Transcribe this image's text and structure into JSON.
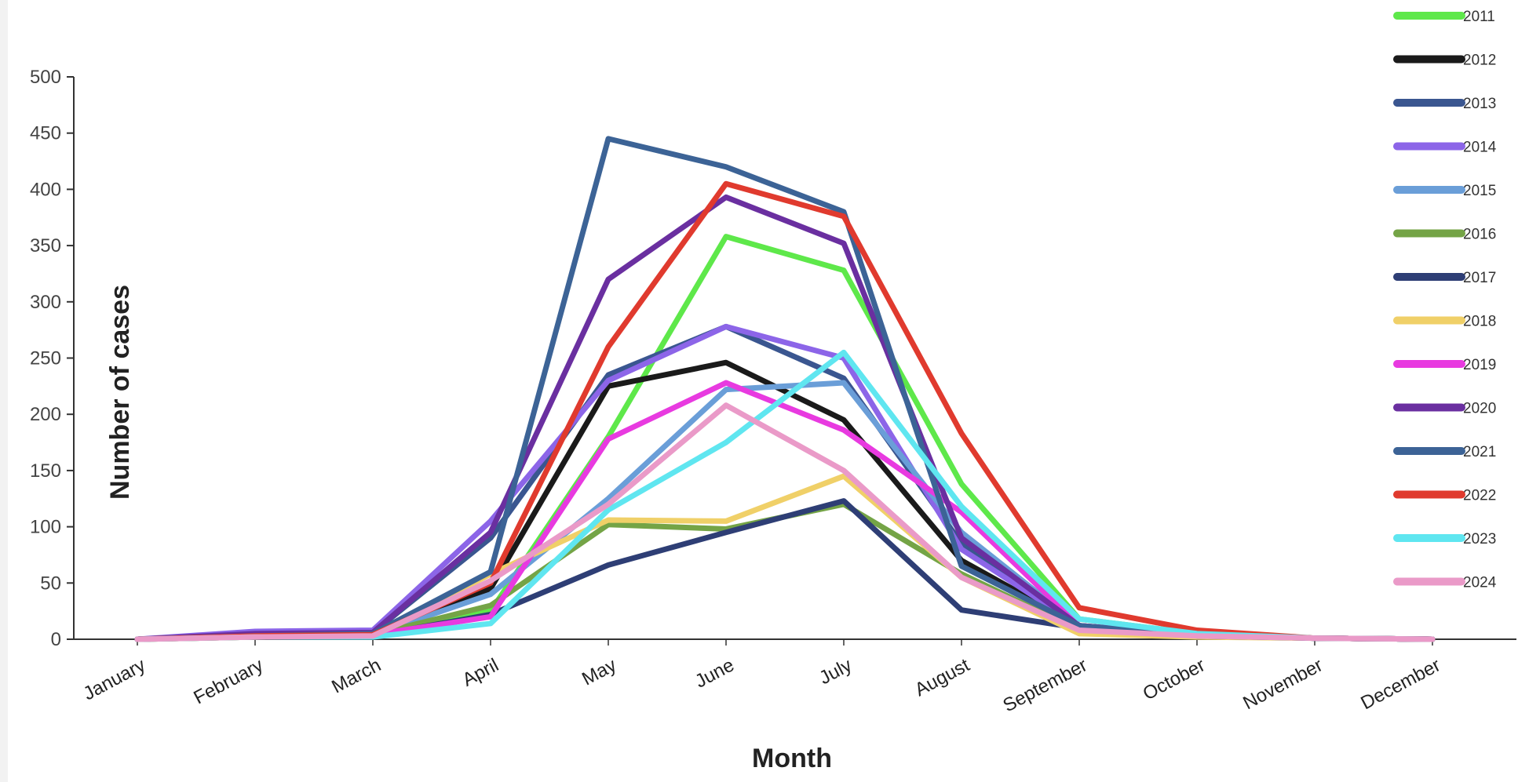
{
  "chart_data": {
    "type": "line",
    "title": "",
    "xlabel": "Month",
    "ylabel": "Number of cases",
    "ylim": [
      0,
      500
    ],
    "yticks": [
      0,
      50,
      100,
      150,
      200,
      250,
      300,
      350,
      400,
      450,
      500
    ],
    "grid": false,
    "legend_position": "right",
    "categories": [
      "January",
      "February",
      "March",
      "April",
      "May",
      "June",
      "July",
      "August",
      "September",
      "October",
      "November",
      "December"
    ],
    "series": [
      {
        "name": "2011",
        "color": "#5ee84a",
        "values": [
          0,
          3,
          3,
          25,
          180,
          358,
          328,
          138,
          18,
          5,
          1,
          0
        ]
      },
      {
        "name": "2012",
        "color": "#1a1a1a",
        "values": [
          0,
          3,
          5,
          45,
          225,
          246,
          195,
          70,
          12,
          4,
          1,
          0
        ]
      },
      {
        "name": "2013",
        "color": "#3a5690",
        "values": [
          0,
          4,
          6,
          90,
          235,
          278,
          232,
          85,
          10,
          3,
          1,
          0
        ]
      },
      {
        "name": "2014",
        "color": "#8c65e8",
        "values": [
          0,
          7,
          8,
          105,
          230,
          278,
          250,
          80,
          12,
          4,
          1,
          0
        ]
      },
      {
        "name": "2015",
        "color": "#6a9ed8",
        "values": [
          0,
          3,
          4,
          40,
          125,
          222,
          228,
          95,
          12,
          4,
          1,
          0
        ]
      },
      {
        "name": "2016",
        "color": "#74a446",
        "values": [
          0,
          2,
          4,
          30,
          102,
          98,
          120,
          58,
          8,
          3,
          1,
          0
        ]
      },
      {
        "name": "2017",
        "color": "#2e3e75",
        "values": [
          0,
          2,
          3,
          22,
          66,
          95,
          123,
          26,
          10,
          3,
          1,
          0
        ]
      },
      {
        "name": "2018",
        "color": "#f0d068",
        "values": [
          0,
          2,
          3,
          58,
          106,
          105,
          145,
          55,
          5,
          2,
          1,
          0
        ]
      },
      {
        "name": "2019",
        "color": "#e83ae0",
        "values": [
          0,
          3,
          4,
          20,
          178,
          228,
          186,
          113,
          12,
          4,
          1,
          0
        ]
      },
      {
        "name": "2020",
        "color": "#6a2fa0",
        "values": [
          0,
          5,
          6,
          95,
          320,
          393,
          352,
          90,
          12,
          4,
          1,
          0
        ]
      },
      {
        "name": "2021",
        "color": "#3c6396",
        "values": [
          0,
          3,
          5,
          60,
          445,
          420,
          380,
          65,
          12,
          3,
          1,
          0
        ]
      },
      {
        "name": "2022",
        "color": "#e03a2e",
        "values": [
          0,
          3,
          4,
          50,
          260,
          405,
          376,
          183,
          28,
          8,
          1,
          0
        ]
      },
      {
        "name": "2023",
        "color": "#5fe6f0",
        "values": [
          0,
          2,
          2,
          14,
          115,
          175,
          255,
          118,
          18,
          5,
          1,
          0
        ]
      },
      {
        "name": "2024",
        "color": "#ea9ac8",
        "values": [
          0,
          2,
          3,
          52,
          120,
          208,
          150,
          55,
          8,
          3,
          1,
          0
        ]
      }
    ]
  }
}
